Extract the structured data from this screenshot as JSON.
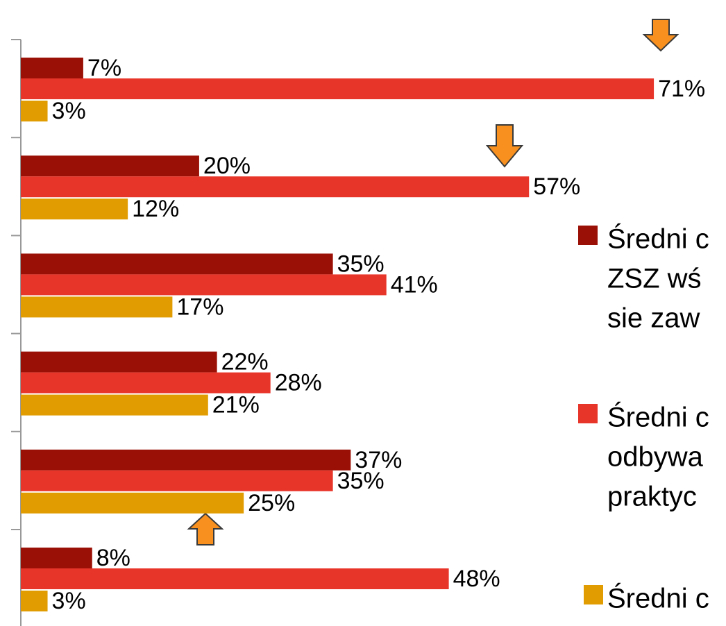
{
  "chart_data": {
    "type": "bar",
    "orientation": "horizontal",
    "categories": [
      null,
      null,
      null,
      null,
      null,
      null
    ],
    "series": [
      {
        "name": [
          "Średni c",
          "ZSZ wś",
          "sie zaw"
        ],
        "color": "#9b1006",
        "values": [
          7,
          20,
          35,
          22,
          37,
          8
        ],
        "value_labels": [
          "7%",
          "20%",
          "35%",
          "22%",
          "37%",
          "8%"
        ]
      },
      {
        "name": [
          "Średni c",
          "odbywa",
          "praktyc"
        ],
        "color": "#e8352a",
        "values": [
          71,
          57,
          41,
          28,
          35,
          48
        ],
        "value_labels": [
          "71%",
          "57%",
          "41%",
          "28%",
          "35%",
          "48%"
        ]
      },
      {
        "name": [
          "Średni c"
        ],
        "color": "#e09c00",
        "values": [
          3,
          12,
          17,
          21,
          25,
          3
        ],
        "value_labels": [
          "3%",
          "12%",
          "17%",
          "21%",
          "25%",
          "3%"
        ]
      }
    ],
    "xlim": [
      0,
      78
    ]
  }
}
